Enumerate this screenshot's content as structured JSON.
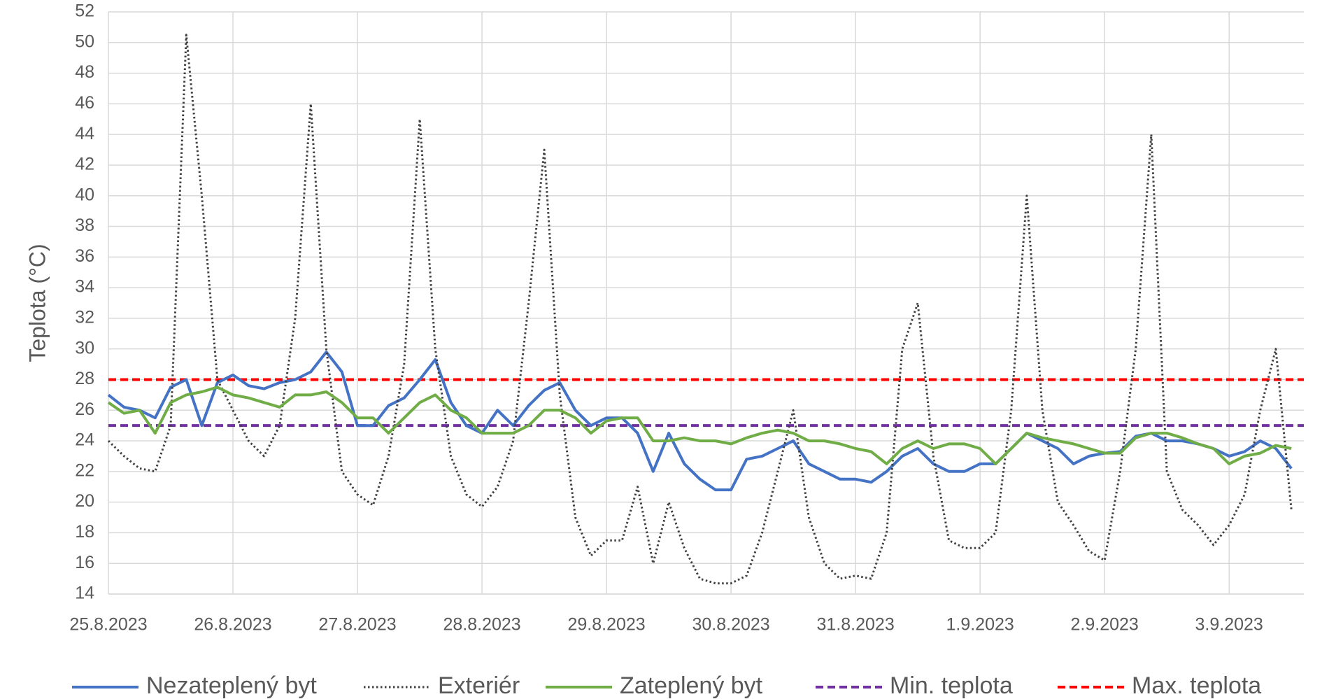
{
  "chart_data": {
    "type": "line",
    "y_label": "Teplota (°C)",
    "x": [
      0,
      0.125,
      0.25,
      0.375,
      0.5,
      0.625,
      0.75,
      0.875,
      1,
      1.125,
      1.25,
      1.375,
      1.5,
      1.625,
      1.75,
      1.875,
      2,
      2.125,
      2.25,
      2.375,
      2.5,
      2.625,
      2.75,
      2.875,
      3,
      3.125,
      3.25,
      3.375,
      3.5,
      3.625,
      3.75,
      3.875,
      4,
      4.125,
      4.25,
      4.375,
      4.5,
      4.625,
      4.75,
      4.875,
      5,
      5.125,
      5.25,
      5.375,
      5.5,
      5.625,
      5.75,
      5.875,
      6,
      6.125,
      6.25,
      6.375,
      6.5,
      6.625,
      6.75,
      6.875,
      7,
      7.125,
      7.25,
      7.375,
      7.5,
      7.625,
      7.75,
      7.875,
      8,
      8.125,
      8.25,
      8.375,
      8.5,
      8.625,
      8.75,
      8.875,
      9,
      9.125,
      9.25,
      9.375,
      9.5
    ],
    "series": [
      {
        "name": "Nezateplený byt",
        "color": "#4472c4",
        "style": "solid",
        "values": [
          27,
          26.2,
          26,
          25.5,
          27.5,
          28,
          25,
          27.8,
          28.3,
          27.6,
          27.4,
          27.8,
          28,
          28.5,
          29.8,
          28.5,
          25,
          25,
          26.3,
          26.8,
          28,
          29.3,
          26.5,
          25,
          24.5,
          26,
          25,
          26.3,
          27.3,
          27.8,
          26,
          25,
          25.5,
          25.5,
          24.5,
          22,
          24.5,
          22.5,
          21.5,
          20.8,
          20.8,
          22.8,
          23,
          23.5,
          24,
          22.5,
          22,
          21.5,
          21.5,
          21.3,
          22,
          23,
          23.5,
          22.5,
          22,
          22,
          22.5,
          22.5,
          23.5,
          24.5,
          24,
          23.5,
          22.5,
          23,
          23.2,
          23.3,
          24.3,
          24.5,
          24,
          24,
          23.8,
          23.5,
          23,
          23.3,
          24,
          23.5,
          22.2
        ]
      },
      {
        "name": "Exteriér",
        "color": "#404040",
        "style": "dotted",
        "values": [
          24,
          23,
          22.2,
          22,
          25,
          50.5,
          40,
          28,
          26,
          24,
          23,
          25,
          32,
          46,
          30,
          22,
          20.5,
          19.8,
          23,
          29,
          45,
          30,
          23,
          20.5,
          19.7,
          21,
          24,
          33,
          43,
          27,
          19,
          16.5,
          17.5,
          17.5,
          21,
          16,
          20,
          17,
          15,
          14.7,
          14.7,
          15.2,
          18,
          22,
          26,
          19,
          16,
          15,
          15.2,
          15,
          18,
          30,
          33,
          23,
          17.5,
          17,
          17,
          18,
          26,
          40,
          26,
          20,
          18.5,
          16.8,
          16.2,
          22,
          30,
          44,
          22,
          19.5,
          18.5,
          17.2,
          18.5,
          20.5,
          26,
          30,
          19.5
        ]
      },
      {
        "name": "Zateplený byt",
        "color": "#70ad47",
        "style": "solid",
        "values": [
          26.5,
          25.8,
          26,
          24.5,
          26.5,
          27,
          27.2,
          27.5,
          27,
          26.8,
          26.5,
          26.2,
          27,
          27,
          27.2,
          26.5,
          25.5,
          25.5,
          24.5,
          25.5,
          26.5,
          27,
          26,
          25.5,
          24.5,
          24.5,
          24.5,
          25,
          26,
          26,
          25.5,
          24.5,
          25.3,
          25.5,
          25.5,
          24,
          24,
          24.2,
          24,
          24,
          23.8,
          24.2,
          24.5,
          24.7,
          24.5,
          24,
          24,
          23.8,
          23.5,
          23.3,
          22.5,
          23.5,
          24,
          23.5,
          23.8,
          23.8,
          23.5,
          22.5,
          23.5,
          24.5,
          24.2,
          24,
          23.8,
          23.5,
          23.2,
          23.2,
          24.2,
          24.5,
          24.5,
          24.2,
          23.8,
          23.5,
          22.5,
          23,
          23.2,
          23.7,
          23.5
        ]
      }
    ],
    "reference_lines": [
      {
        "name": "Min. teplota",
        "value": 25,
        "color": "#7030a0"
      },
      {
        "name": "Max. teplota",
        "value": 28,
        "color": "#ff0000"
      }
    ],
    "xlim": [
      0,
      9.6
    ],
    "xticks": [
      {
        "value": 0,
        "label": "25.8.2023"
      },
      {
        "value": 1,
        "label": "26.8.2023"
      },
      {
        "value": 2,
        "label": "27.8.2023"
      },
      {
        "value": 3,
        "label": "28.8.2023"
      },
      {
        "value": 4,
        "label": "29.8.2023"
      },
      {
        "value": 5,
        "label": "30.8.2023"
      },
      {
        "value": 6,
        "label": "31.8.2023"
      },
      {
        "value": 7,
        "label": "1.9.2023"
      },
      {
        "value": 8,
        "label": "2.9.2023"
      },
      {
        "value": 9,
        "label": "3.9.2023"
      }
    ],
    "ylim": [
      14,
      52
    ],
    "yticks": [
      14,
      16,
      18,
      20,
      22,
      24,
      26,
      28,
      30,
      32,
      34,
      36,
      38,
      40,
      42,
      44,
      46,
      48,
      50,
      52
    ],
    "grid": true,
    "legend": "bottom"
  }
}
